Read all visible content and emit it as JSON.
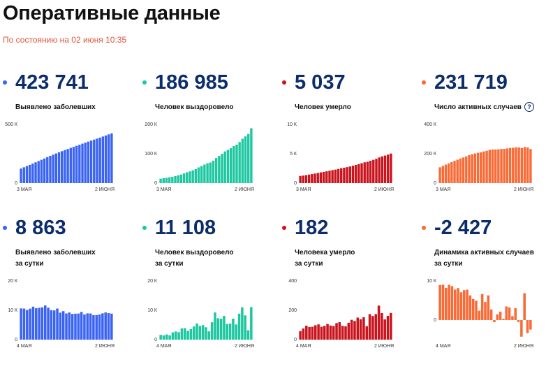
{
  "page": {
    "title": "Оперативные данные",
    "subtitle": "По состоянию на 02 июня 10:35"
  },
  "cards": [
    {
      "value": "423 741",
      "label_lines": [
        "Выявлено заболевших"
      ],
      "color": "#3a63f3",
      "chart_data": {
        "type": "bar",
        "x_labels": [
          "3 МАЯ",
          "2 ИЮНЯ"
        ],
        "y_ticks": [
          "500 К",
          "0"
        ],
        "ylim": [
          0,
          500000
        ],
        "values": [
          124054,
          134687,
          145268,
          155370,
          165929,
          177160,
          187859,
          198676,
          209688,
          221344,
          232243,
          242271,
          252245,
          262843,
          272043,
          281752,
          290678,
          299941,
          308705,
          317554,
          326448,
          335882,
          344481,
          353427,
          362342,
          370680,
          379051,
          387623,
          396575,
          405843,
          414878,
          423741
        ]
      }
    },
    {
      "value": "186 985",
      "label_lines": [
        "Человек выздоровело"
      ],
      "color": "#1dc7a0",
      "chart_data": {
        "type": "bar",
        "x_labels": [
          "3 МАЯ",
          "2 ИЮНЯ"
        ],
        "y_ticks": [
          "200 К",
          "100 К",
          "0"
        ],
        "ylim": [
          0,
          200000
        ],
        "values": [
          15013,
          16639,
          18095,
          19865,
          21327,
          23803,
          26608,
          29145,
          32967,
          36879,
          39892,
          43512,
          48003,
          53530,
          58226,
          63166,
          67373,
          70209,
          76130,
          85392,
          92681,
          99825,
          107936,
          113299,
          118798,
          125960,
          131129,
          139979,
          150993,
          159257,
          167469,
          186985
        ]
      }
    },
    {
      "value": "5 037",
      "label_lines": [
        "Человек умерло"
      ],
      "color": "#c9141d",
      "chart_data": {
        "type": "bar",
        "x_labels": [
          "3 МАЯ",
          "2 ИЮНЯ"
        ],
        "y_ticks": [
          "10 К",
          "5 К",
          "0"
        ],
        "ylim": [
          0,
          10000
        ],
        "values": [
          1222,
          1280,
          1356,
          1451,
          1537,
          1625,
          1723,
          1827,
          1915,
          2009,
          2116,
          2212,
          2305,
          2418,
          2537,
          2631,
          2722,
          2837,
          2972,
          3099,
          3249,
          3388,
          3541,
          3633,
          3807,
          3968,
          4142,
          4374,
          4555,
          4693,
          4855,
          5037
        ]
      }
    },
    {
      "value": "231 719",
      "label_lines": [
        "Число активных случаев"
      ],
      "has_help": true,
      "help_text": "?",
      "color": "#f96a36",
      "chart_data": {
        "type": "bar",
        "x_labels": [
          "3 МАЯ",
          "2 ИЮНЯ"
        ],
        "y_ticks": [
          "400 К",
          "200 К",
          "0"
        ],
        "ylim": [
          0,
          400000
        ],
        "values": [
          107819,
          116768,
          125817,
          134054,
          143065,
          151732,
          159528,
          167704,
          174806,
          182456,
          190235,
          196547,
          201937,
          206895,
          209280,
          215955,
          220583,
          226895,
          229603,
          229063,
          230518,
          232669,
          233004,
          236495,
          239737,
          240752,
          243780,
          243270,
          239027,
          245893,
          242560,
          231719
        ]
      }
    },
    {
      "value": "8 863",
      "label_lines": [
        "Выявлено заболевших",
        "за сутки"
      ],
      "color": "#3a63f3",
      "chart_data": {
        "type": "bar",
        "x_labels": [
          "4 МАЯ",
          "2 ИЮНЯ"
        ],
        "y_ticks": [
          "20 К",
          "10 К",
          "0"
        ],
        "ylim": [
          0,
          20000
        ],
        "values": [
          10633,
          10581,
          10102,
          10559,
          11231,
          10699,
          10817,
          11012,
          11656,
          10899,
          10028,
          9974,
          10598,
          9200,
          9709,
          8926,
          9263,
          8764,
          8849,
          8894,
          9434,
          8599,
          8946,
          8915,
          8338,
          8371,
          8572,
          8952,
          9268,
          9035,
          8863
        ]
      }
    },
    {
      "value": "11 108",
      "label_lines": [
        "Человек выздоровело",
        "за сутки"
      ],
      "color": "#1dc7a0",
      "chart_data": {
        "type": "bar",
        "x_labels": [
          "4 МАЯ",
          "2 ИЮНЯ"
        ],
        "y_ticks": [
          "20 К",
          "10 К",
          "0"
        ],
        "ylim": [
          0,
          20000
        ],
        "values": [
          1626,
          1456,
          1770,
          1462,
          2476,
          2805,
          2537,
          3822,
          3912,
          3013,
          3620,
          4491,
          5527,
          4696,
          4940,
          4207,
          2836,
          5921,
          9262,
          7289,
          7144,
          8111,
          5363,
          5499,
          7162,
          5169,
          8850,
          11014,
          8264,
          3212,
          11108
        ]
      }
    },
    {
      "value": "182",
      "label_lines": [
        "Человека умерло",
        "за сутки"
      ],
      "color": "#c9141d",
      "chart_data": {
        "type": "bar",
        "x_labels": [
          "4 МАЯ",
          "2 ИЮНЯ"
        ],
        "y_ticks": [
          "400",
          "200",
          "0"
        ],
        "ylim": [
          0,
          400
        ],
        "values": [
          58,
          76,
          95,
          86,
          88,
          98,
          104,
          88,
          94,
          107,
          96,
          93,
          113,
          119,
          94,
          91,
          115,
          135,
          127,
          150,
          139,
          153,
          92,
          174,
          161,
          174,
          232,
          181,
          138,
          162,
          182
        ]
      }
    },
    {
      "value": "-2 427",
      "label_lines": [
        "Динамика активных случаев",
        "за сутки"
      ],
      "color": "#f96a36",
      "chart_data": {
        "type": "bar",
        "x_labels": [
          "4 МАЯ",
          "2 ИЮНЯ"
        ],
        "y_ticks": [
          "10 К",
          "0"
        ],
        "ylim": [
          -5000,
          10000
        ],
        "values": [
          8949,
          9049,
          8237,
          9011,
          8667,
          7796,
          8176,
          7102,
          7650,
          7779,
          6312,
          5390,
          4958,
          2385,
          6675,
          4628,
          6312,
          2708,
          -540,
          1455,
          2151,
          335,
          3491,
          3242,
          1015,
          3028,
          -510,
          -4243,
          6866,
          -3333,
          -2427
        ]
      }
    }
  ]
}
